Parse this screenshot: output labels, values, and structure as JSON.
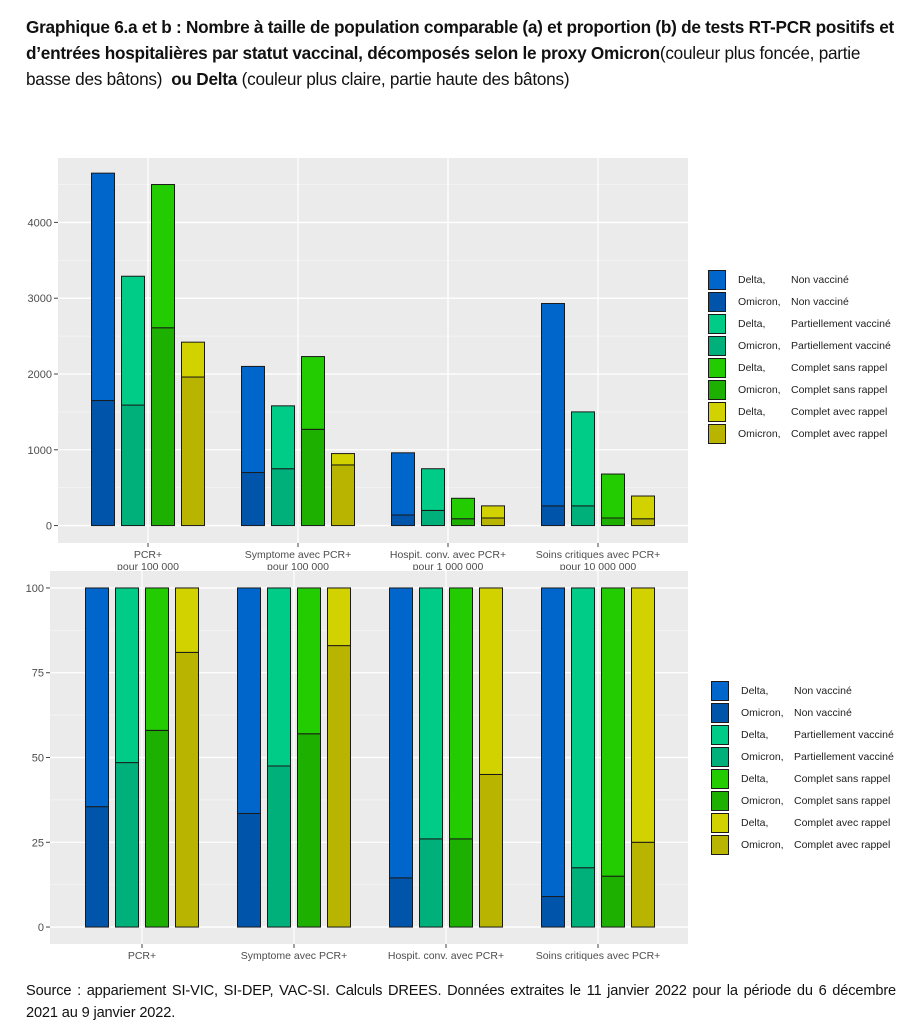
{
  "title": {
    "bold1": "Graphique 6.a et b : Nombre à taille de population comparable (a) et proportion (b) de tests RT-PCR positifs et d’entrées hospitalières par statut vaccinal, décomposés selon le proxy Omicron",
    "normal1": "(couleur plus foncée, partie basse des bâtons)",
    "bold2": "ou Delta",
    "normal2": "(couleur plus claire, partie haute des bâtons)"
  },
  "source": "Source : appariement SI-VIC, SI-DEP, VAC-SI. Calculs DREES. Données extraites le 11 janvier 2022 pour la période du 6 décembre 2021 au 9 janvier 2022.",
  "legend": [
    {
      "variant": "Delta,",
      "status": "Non vacciné",
      "color": "#0066CC"
    },
    {
      "variant": "Omicron,",
      "status": "Non vacciné",
      "color": "#0055AA"
    },
    {
      "variant": "Delta,",
      "status": "Partiellement vacciné",
      "color": "#00CC88"
    },
    {
      "variant": "Omicron,",
      "status": "Partiellement vacciné",
      "color": "#00B07A"
    },
    {
      "variant": "Delta,",
      "status": "Complet sans rappel",
      "color": "#22CC00"
    },
    {
      "variant": "Omicron,",
      "status": "Complet sans rappel",
      "color": "#1DB000"
    },
    {
      "variant": "Delta,",
      "status": "Complet avec rappel",
      "color": "#D2D200"
    },
    {
      "variant": "Omicron,",
      "status": "Complet avec rappel",
      "color": "#B8B400"
    }
  ],
  "chart_data": [
    {
      "type": "bar",
      "stacked": true,
      "title": "Graphique 6.a",
      "xlabel": "",
      "ylabel": "",
      "categories": [
        "PCR+\npour 100 000",
        "Symptome avec PCR+\npour 100 000",
        "Hospit. conv. avec PCR+\npour 1 000 000",
        "Soins critiques avec PCR+\npour 10 000 000"
      ],
      "groups": [
        "Non vacciné",
        "Partiellement vacciné",
        "Complet sans rappel",
        "Complet avec rappel"
      ],
      "series": [
        {
          "name": "Omicron",
          "values": [
            [
              1650,
              1590,
              2610,
              1960
            ],
            [
              700,
              750,
              1270,
              800
            ],
            [
              140,
              200,
              90,
              100
            ],
            [
              260,
              260,
              100,
              90
            ]
          ]
        },
        {
          "name": "Delta",
          "values": [
            [
              3000,
              1700,
              1890,
              460
            ],
            [
              1400,
              830,
              960,
              150
            ],
            [
              820,
              550,
              270,
              160
            ],
            [
              2670,
              1240,
              580,
              300
            ]
          ]
        }
      ],
      "totals": [
        [
          4650,
          3290,
          4500,
          2420
        ],
        [
          2100,
          1580,
          2230,
          950
        ],
        [
          960,
          750,
          360,
          260
        ],
        [
          2930,
          1500,
          680,
          390
        ]
      ],
      "yticks": [
        0,
        1000,
        2000,
        3000,
        4000
      ],
      "ylim": [
        -230,
        4850
      ],
      "grid": true,
      "legend": "right"
    },
    {
      "type": "bar",
      "stacked": true,
      "title": "Graphique 6.b",
      "xlabel": "",
      "ylabel": "",
      "categories": [
        "PCR+",
        "Symptome avec PCR+",
        "Hospit. conv. avec PCR+",
        "Soins critiques avec PCR+"
      ],
      "groups": [
        "Non vacciné",
        "Partiellement vacciné",
        "Complet sans rappel",
        "Complet avec rappel"
      ],
      "series": [
        {
          "name": "Omicron",
          "values": [
            [
              35.5,
              48.5,
              58,
              81
            ],
            [
              33.5,
              47.5,
              57,
              83
            ],
            [
              14.5,
              26,
              26,
              45
            ],
            [
              9,
              17.5,
              15,
              25
            ]
          ]
        },
        {
          "name": "Delta",
          "values": [
            [
              64.5,
              51.5,
              42,
              19
            ],
            [
              66.5,
              52.5,
              43,
              17
            ],
            [
              85.5,
              74,
              74,
              55
            ],
            [
              91,
              82.5,
              85,
              75
            ]
          ]
        }
      ],
      "yticks": [
        0,
        25,
        50,
        75,
        100
      ],
      "ylim": [
        -5,
        105
      ],
      "grid": true,
      "legend": "right"
    }
  ]
}
